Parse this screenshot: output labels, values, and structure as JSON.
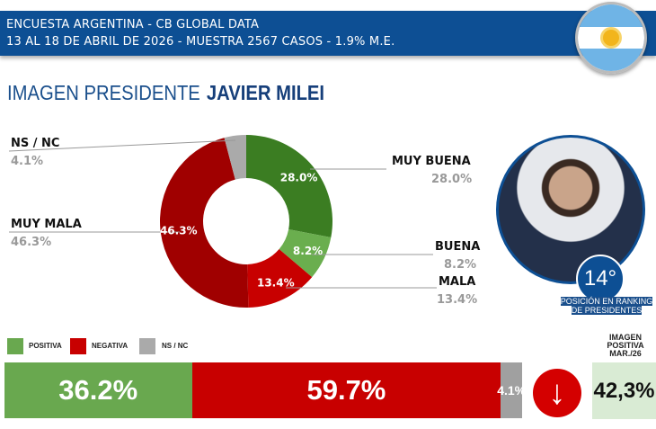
{
  "header": {
    "line1": "ENCUESTA ARGENTINA - CB GLOBAL DATA",
    "line2": "13 AL 18 DE ABRIL DE 2026 - MUESTRA 2567 CASOS - 1.9% M.E."
  },
  "title": {
    "prefix": "IMAGEN PRESIDENTE",
    "name": "JAVIER MILEI"
  },
  "chart_data": {
    "type": "pie",
    "title": "IMAGEN PRESIDENTE JAVIER MILEI",
    "slices": [
      {
        "label": "MUY BUENA",
        "value": 28.0,
        "display": "28.0%",
        "color": "#3b7d22"
      },
      {
        "label": "BUENA",
        "value": 8.2,
        "display": "8.2%",
        "color": "#6aae4e"
      },
      {
        "label": "MALA",
        "value": 13.4,
        "display": "13.4%",
        "color": "#c80000"
      },
      {
        "label": "MUY MALA",
        "value": 46.3,
        "display": "46.3%",
        "color": "#a00000"
      },
      {
        "label": "NS / NC",
        "value": 4.1,
        "display": "4.1%",
        "color": "#aaaaaa"
      }
    ]
  },
  "ranking": {
    "position": "14°",
    "label": "POSICIÓN EN RANKING DE PRESIDENTES"
  },
  "summary": {
    "legend": [
      "POSITIVA",
      "NEGATIVA",
      "NS / NC"
    ],
    "bars": [
      {
        "label": "36.2%",
        "value": 36.2,
        "color": "#69a84f"
      },
      {
        "label": "59.7%",
        "value": 59.7,
        "color": "#c80000"
      },
      {
        "label": "4.1%",
        "value": 4.1,
        "color": "#a0a0a0"
      }
    ],
    "previous_header": "IMAGEN POSITIVA MAR./26",
    "previous_value": "42,3%",
    "trend": "down"
  }
}
